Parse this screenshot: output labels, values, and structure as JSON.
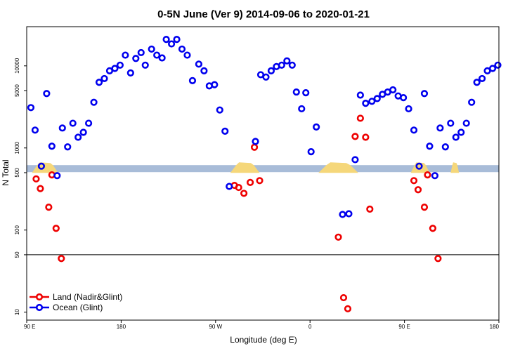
{
  "chart_data": {
    "type": "scatter",
    "title": "0-5N June (Ver 9)   2014-09-06 to 2020-01-21",
    "xlabel": "Longitude (deg E)",
    "ylabel": "N Total",
    "y_scale": "log",
    "ylim": [
      8,
      30000
    ],
    "x_ticks": [
      {
        "value": 0,
        "label": "90 E"
      },
      {
        "value": 90,
        "label": "180"
      },
      {
        "value": 180,
        "label": "90 W"
      },
      {
        "value": 270,
        "label": "0"
      },
      {
        "value": 360,
        "label": "90 E"
      },
      {
        "value": 450,
        "label": "180"
      }
    ],
    "y_ticks": [
      {
        "value": 10,
        "label": "10"
      },
      {
        "value": 50,
        "label": "50"
      },
      {
        "value": 100,
        "label": "100"
      },
      {
        "value": 500,
        "label": "500"
      },
      {
        "value": 1000,
        "label": "1000"
      },
      {
        "value": 5000,
        "label": "5000"
      },
      {
        "value": 10000,
        "label": "10000"
      }
    ],
    "reference_line": 50,
    "land_mask": {
      "base_value": 560,
      "land_spans": [
        [
          5,
          30
        ],
        [
          194,
          222
        ],
        [
          278,
          316
        ],
        [
          366,
          384
        ],
        [
          404,
          412
        ]
      ]
    },
    "legend_position": "bottom-left",
    "series": [
      {
        "name": "Land (Nadir&Glint)",
        "color": "#ee0000",
        "points": [
          [
            9,
            420
          ],
          [
            13,
            320
          ],
          [
            21,
            190
          ],
          [
            24,
            470
          ],
          [
            28,
            105
          ],
          [
            33,
            45
          ],
          [
            198,
            350
          ],
          [
            202,
            330
          ],
          [
            207,
            280
          ],
          [
            213,
            380
          ],
          [
            217,
            1020
          ],
          [
            222,
            400
          ],
          [
            297,
            82
          ],
          [
            302,
            15
          ],
          [
            306,
            11
          ],
          [
            313,
            1380
          ],
          [
            318,
            2300
          ],
          [
            323,
            1350
          ],
          [
            327,
            180
          ],
          [
            369,
            400
          ],
          [
            373,
            310
          ],
          [
            379,
            190
          ],
          [
            382,
            470
          ],
          [
            387,
            105
          ],
          [
            392,
            45
          ]
        ]
      },
      {
        "name": "Ocean (Glint)",
        "color": "#0000ee",
        "points": [
          [
            4,
            3100
          ],
          [
            8,
            1650
          ],
          [
            14,
            600
          ],
          [
            19,
            4600
          ],
          [
            24,
            1050
          ],
          [
            29,
            460
          ],
          [
            34,
            1750
          ],
          [
            39,
            1030
          ],
          [
            44,
            2000
          ],
          [
            49,
            1350
          ],
          [
            54,
            1550
          ],
          [
            59,
            2000
          ],
          [
            64,
            3600
          ],
          [
            69,
            6300
          ],
          [
            74,
            7000
          ],
          [
            79,
            8700
          ],
          [
            84,
            9300
          ],
          [
            89,
            10200
          ],
          [
            94,
            13500
          ],
          [
            99,
            8200
          ],
          [
            104,
            12300
          ],
          [
            109,
            14500
          ],
          [
            113,
            10200
          ],
          [
            119,
            16000
          ],
          [
            124,
            13500
          ],
          [
            129,
            12500
          ],
          [
            133,
            21000
          ],
          [
            138,
            18500
          ],
          [
            143,
            21000
          ],
          [
            148,
            16000
          ],
          [
            153,
            13500
          ],
          [
            158,
            6600
          ],
          [
            164,
            10500
          ],
          [
            169,
            8700
          ],
          [
            174,
            5700
          ],
          [
            179,
            5900
          ],
          [
            184,
            2900
          ],
          [
            189,
            1600
          ],
          [
            193,
            340
          ],
          [
            218,
            1200
          ],
          [
            223,
            7800
          ],
          [
            228,
            7300
          ],
          [
            233,
            8700
          ],
          [
            238,
            9800
          ],
          [
            243,
            10200
          ],
          [
            248,
            11500
          ],
          [
            253,
            10200
          ],
          [
            257,
            4800
          ],
          [
            262,
            3000
          ],
          [
            266,
            4700
          ],
          [
            271,
            900
          ],
          [
            276,
            1800
          ],
          [
            301,
            155
          ],
          [
            307,
            158
          ],
          [
            313,
            720
          ],
          [
            318,
            4400
          ],
          [
            323,
            3500
          ],
          [
            329,
            3700
          ],
          [
            334,
            4000
          ],
          [
            339,
            4500
          ],
          [
            344,
            4800
          ],
          [
            349,
            5100
          ],
          [
            354,
            4300
          ],
          [
            359,
            4100
          ],
          [
            364,
            3000
          ],
          [
            369,
            1650
          ],
          [
            374,
            600
          ],
          [
            379,
            4600
          ],
          [
            384,
            1050
          ],
          [
            389,
            460
          ],
          [
            394,
            1750
          ],
          [
            399,
            1030
          ],
          [
            404,
            2000
          ],
          [
            409,
            1350
          ],
          [
            414,
            1550
          ],
          [
            419,
            2000
          ],
          [
            424,
            3600
          ],
          [
            429,
            6300
          ],
          [
            434,
            7000
          ],
          [
            439,
            8700
          ],
          [
            444,
            9300
          ],
          [
            449,
            10200
          ]
        ]
      }
    ]
  }
}
